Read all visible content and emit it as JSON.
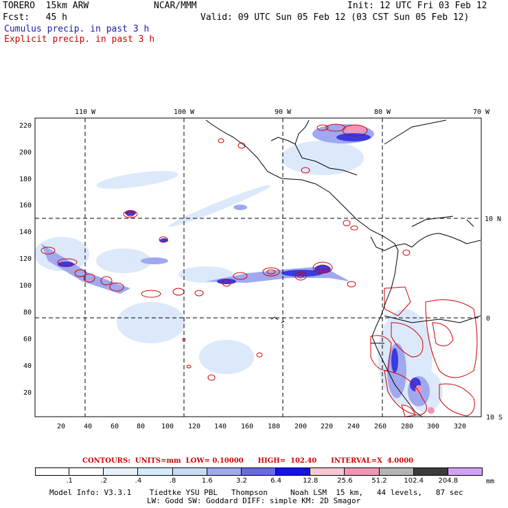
{
  "header": {
    "model": "TORERO  15km ARW",
    "org": "NCAR/MMM",
    "init": "Init: 12 UTC Fri 03 Feb 12",
    "fcst": "Fcst:   45 h",
    "valid": "Valid: 09 UTC Sun 05 Feb 12 (03 CST Sun 05 Feb 12)",
    "line1": "Cumulus precip. in past 3 h",
    "line2": "Explicit precip. in past 3 h",
    "line1_color": "#1a1aa6",
    "line2_color": "#d00000"
  },
  "map": {
    "top_lon_labels": [
      "110 W",
      "100 W",
      "90 W",
      "80 W",
      "70 W"
    ],
    "right_lat_labels": [
      "10 N",
      "0",
      "10 S"
    ],
    "y_ticks": [
      "220",
      "200",
      "180",
      "160",
      "140",
      "120",
      "100",
      "80",
      "60",
      "40",
      "20"
    ],
    "x_ticks": [
      "20",
      "40",
      "60",
      "80",
      "100",
      "120",
      "140",
      "160",
      "180",
      "200",
      "220",
      "240",
      "260",
      "280",
      "300",
      "320"
    ]
  },
  "contours": {
    "text": "CONTOURS:  UNITS=mm  LOW= 0.10000      HIGH=  102.40      INTERVAL=X  4.0000"
  },
  "legend": {
    "labels": [
      ".1",
      ".2",
      ".4",
      ".8",
      "1.6",
      "3.2",
      "6.4",
      "12.8",
      "25.6",
      "51.2",
      "102.4",
      "204.8"
    ],
    "unit": "mm",
    "colors": [
      "#ffffff",
      "#ffffff",
      "#e6f2fa",
      "#d2ecfa",
      "#c8dcf6",
      "#a0a8f0",
      "#6a6ae6",
      "#1414dc",
      "#f6c8d2",
      "#f096b4",
      "#b4b4b4",
      "#3c3c3c",
      "#d2a0f5"
    ]
  },
  "footer": {
    "line1": "Model Info: V3.3.1    Tiedtke YSU PBL   Thompson     Noah LSM  15 km,   44 levels,   87 sec",
    "line2": "LW: Godd SW: Goddard DIFF: simple KM: 2D Smagor"
  }
}
